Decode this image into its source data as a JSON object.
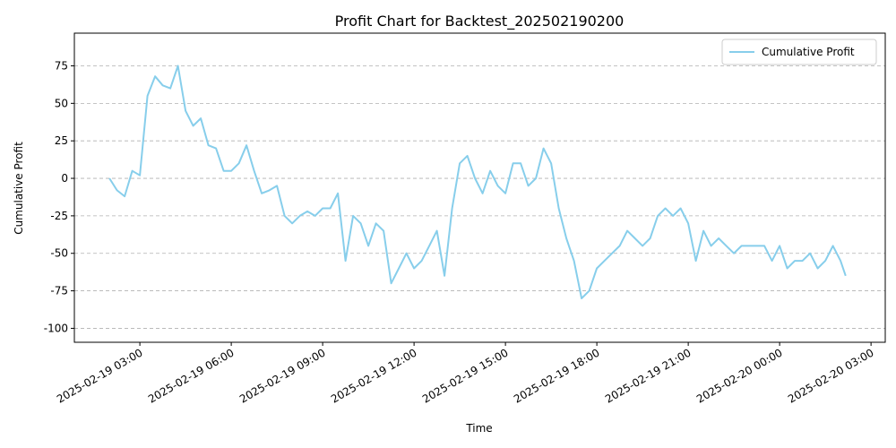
{
  "chart_data": {
    "type": "line",
    "title": "Profit Chart for Backtest_202502190200",
    "xlabel": "Time",
    "ylabel": "Cumulative Profit",
    "x": [
      "2025-02-19 02:00",
      "2025-02-19 02:15",
      "2025-02-19 02:30",
      "2025-02-19 02:45",
      "2025-02-19 03:00",
      "2025-02-19 03:15",
      "2025-02-19 03:30",
      "2025-02-19 03:45",
      "2025-02-19 04:00",
      "2025-02-19 04:15",
      "2025-02-19 04:30",
      "2025-02-19 04:45",
      "2025-02-19 05:00",
      "2025-02-19 05:15",
      "2025-02-19 05:30",
      "2025-02-19 05:45",
      "2025-02-19 06:00",
      "2025-02-19 06:15",
      "2025-02-19 06:30",
      "2025-02-19 06:45",
      "2025-02-19 07:00",
      "2025-02-19 07:15",
      "2025-02-19 07:30",
      "2025-02-19 07:45",
      "2025-02-19 08:00",
      "2025-02-19 08:15",
      "2025-02-19 08:30",
      "2025-02-19 08:45",
      "2025-02-19 09:00",
      "2025-02-19 09:15",
      "2025-02-19 09:30",
      "2025-02-19 09:45",
      "2025-02-19 10:00",
      "2025-02-19 10:15",
      "2025-02-19 10:30",
      "2025-02-19 10:45",
      "2025-02-19 11:00",
      "2025-02-19 11:15",
      "2025-02-19 11:30",
      "2025-02-19 11:45",
      "2025-02-19 12:00",
      "2025-02-19 12:15",
      "2025-02-19 12:30",
      "2025-02-19 12:45",
      "2025-02-19 13:00",
      "2025-02-19 13:15",
      "2025-02-19 13:30",
      "2025-02-19 13:45",
      "2025-02-19 14:00",
      "2025-02-19 14:15",
      "2025-02-19 14:30",
      "2025-02-19 14:45",
      "2025-02-19 15:00",
      "2025-02-19 15:15",
      "2025-02-19 15:30",
      "2025-02-19 15:45",
      "2025-02-19 16:00",
      "2025-02-19 16:15",
      "2025-02-19 16:30",
      "2025-02-19 16:45",
      "2025-02-19 17:00",
      "2025-02-19 17:15",
      "2025-02-19 17:30",
      "2025-02-19 17:45",
      "2025-02-19 18:00",
      "2025-02-19 18:15",
      "2025-02-19 18:30",
      "2025-02-19 18:45",
      "2025-02-19 19:00",
      "2025-02-19 19:15",
      "2025-02-19 19:30",
      "2025-02-19 19:45",
      "2025-02-19 20:00",
      "2025-02-19 20:15",
      "2025-02-19 20:30",
      "2025-02-19 20:45",
      "2025-02-19 21:00",
      "2025-02-19 21:15",
      "2025-02-19 21:30",
      "2025-02-19 21:45",
      "2025-02-19 22:00",
      "2025-02-19 22:15",
      "2025-02-19 22:30",
      "2025-02-19 22:45",
      "2025-02-19 23:00",
      "2025-02-19 23:15",
      "2025-02-19 23:30",
      "2025-02-19 23:45",
      "2025-02-20 00:00",
      "2025-02-20 00:15",
      "2025-02-20 00:30",
      "2025-02-20 00:45",
      "2025-02-20 01:00",
      "2025-02-20 01:15",
      "2025-02-20 01:30",
      "2025-02-20 01:45",
      "2025-02-20 02:00",
      "2025-02-20 02:10"
    ],
    "series": [
      {
        "name": "Cumulative Profit",
        "color": "#87ceeb",
        "values": [
          0,
          -8,
          -12,
          5,
          2,
          55,
          68,
          62,
          60,
          75,
          45,
          35,
          40,
          22,
          20,
          5,
          5,
          10,
          22,
          5,
          -10,
          -8,
          -5,
          -25,
          -30,
          -25,
          -22,
          -25,
          -20,
          -20,
          -10,
          -55,
          -25,
          -30,
          -45,
          -30,
          -35,
          -70,
          -60,
          -50,
          -60,
          -55,
          -45,
          -35,
          -65,
          -20,
          10,
          15,
          0,
          -10,
          5,
          -5,
          -10,
          10,
          10,
          -5,
          0,
          20,
          10,
          -20,
          -40,
          -55,
          -80,
          -75,
          -60,
          -55,
          -50,
          -45,
          -35,
          -40,
          -45,
          -40,
          -25,
          -20,
          -25,
          -20,
          -30,
          -55,
          -35,
          -45,
          -40,
          -45,
          -50,
          -45,
          -45,
          -45,
          -45,
          -55,
          -45,
          -60,
          -55,
          -55,
          -50,
          -60,
          -55,
          -45,
          -55,
          -65
        ]
      }
    ],
    "xlim": [
      "2025-02-19 00:51",
      "2025-02-20 03:28"
    ],
    "xticks": [
      "2025-02-19 03:00",
      "2025-02-19 06:00",
      "2025-02-19 09:00",
      "2025-02-19 12:00",
      "2025-02-19 15:00",
      "2025-02-19 18:00",
      "2025-02-19 21:00",
      "2025-02-20 00:00",
      "2025-02-20 03:00"
    ],
    "ylim": [
      -109.3,
      96.8
    ],
    "yticks": [
      -100,
      -75,
      -50,
      -25,
      0,
      25,
      50,
      75
    ],
    "grid": true,
    "legend": "upper right"
  }
}
